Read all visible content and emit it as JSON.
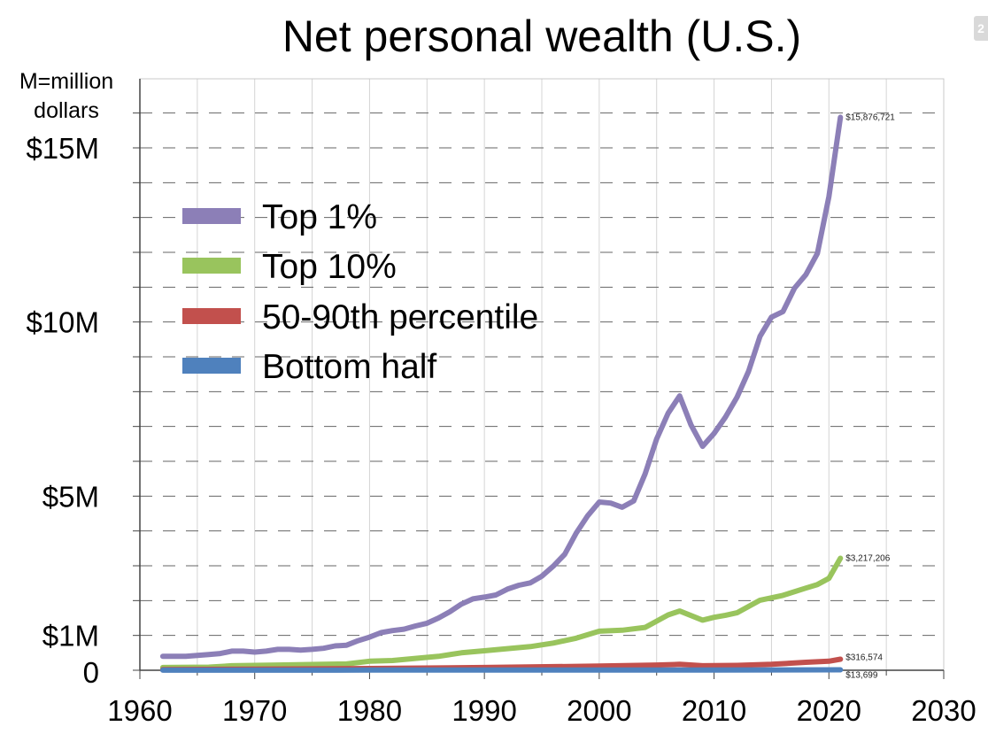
{
  "chart_data": {
    "type": "line",
    "title": "Net personal wealth (U.S.)",
    "unit_note": [
      "M=million",
      "dollars"
    ],
    "xlim": [
      1960,
      2030
    ],
    "ylim": [
      0,
      16000000
    ],
    "x_ticks": [
      1960,
      1970,
      1980,
      1990,
      2000,
      2010,
      2020,
      2030
    ],
    "y_ticks": [
      {
        "value": 0,
        "label": "0"
      },
      {
        "value": 1000000,
        "label": "$1M"
      },
      {
        "value": 5000000,
        "label": "$5M"
      },
      {
        "value": 10000000,
        "label": "$10M"
      },
      {
        "value": 15000000,
        "label": "$15M"
      }
    ],
    "grid": true,
    "legend_position": "upper-left",
    "series": [
      {
        "name": "Top 1%",
        "color": "#8c7fb7",
        "end_label": "$15,876,721",
        "x": [
          1962,
          1964,
          1966,
          1967,
          1968,
          1969,
          1970,
          1971,
          1972,
          1973,
          1974,
          1975,
          1976,
          1977,
          1978,
          1979,
          1980,
          1981,
          1982,
          1983,
          1984,
          1985,
          1986,
          1987,
          1988,
          1989,
          1990,
          1991,
          1992,
          1993,
          1994,
          1995,
          1996,
          1997,
          1998,
          1999,
          2000,
          2001,
          2002,
          2003,
          2004,
          2005,
          2006,
          2007,
          2008,
          2009,
          2010,
          2011,
          2012,
          2013,
          2014,
          2015,
          2016,
          2017,
          2018,
          2019,
          2020,
          2021
        ],
        "y": [
          400000,
          400000,
          450000,
          480000,
          550000,
          550000,
          520000,
          550000,
          600000,
          600000,
          580000,
          600000,
          630000,
          700000,
          720000,
          850000,
          950000,
          1080000,
          1140000,
          1180000,
          1270000,
          1350000,
          1500000,
          1680000,
          1900000,
          2050000,
          2100000,
          2160000,
          2330000,
          2440000,
          2510000,
          2700000,
          2990000,
          3330000,
          3940000,
          4440000,
          4830000,
          4800000,
          4680000,
          4860000,
          5640000,
          6640000,
          7380000,
          7880000,
          7040000,
          6430000,
          6800000,
          7270000,
          7840000,
          8580000,
          9590000,
          10140000,
          10300000,
          10970000,
          11360000,
          11970000,
          13600000,
          15876721
        ]
      },
      {
        "name": "Top 10%",
        "color": "#99c45d",
        "end_label": "$3,217,206",
        "x": [
          1962,
          1966,
          1968,
          1972,
          1976,
          1978,
          1980,
          1982,
          1984,
          1986,
          1988,
          1990,
          1994,
          1996,
          1998,
          2000,
          2002,
          2004,
          2006,
          2007,
          2009,
          2010,
          2011,
          2012,
          2014,
          2016,
          2018,
          2019,
          2020,
          2021
        ],
        "y": [
          80000,
          90000,
          130000,
          150000,
          170000,
          180000,
          260000,
          280000,
          340000,
          400000,
          500000,
          560000,
          680000,
          780000,
          920000,
          1120000,
          1150000,
          1230000,
          1590000,
          1700000,
          1440000,
          1520000,
          1580000,
          1650000,
          2010000,
          2150000,
          2360000,
          2460000,
          2640000,
          3217206
        ]
      },
      {
        "name": "50-90th percentile",
        "color": "#c2504d",
        "end_label": "$316,574",
        "x": [
          1962,
          1970,
          1980,
          1990,
          2000,
          2005,
          2007,
          2009,
          2012,
          2015,
          2018,
          2020,
          2021
        ],
        "y": [
          20000,
          30000,
          50000,
          80000,
          120000,
          150000,
          170000,
          130000,
          140000,
          170000,
          230000,
          260000,
          316574
        ]
      },
      {
        "name": "Bottom half",
        "color": "#4f81bd",
        "end_label": "$13,699",
        "x": [
          1962,
          1970,
          1980,
          1990,
          2000,
          2010,
          2021
        ],
        "y": [
          3000,
          3500,
          4000,
          5000,
          6000,
          5000,
          13699
        ]
      }
    ]
  },
  "corner_tab": "2"
}
